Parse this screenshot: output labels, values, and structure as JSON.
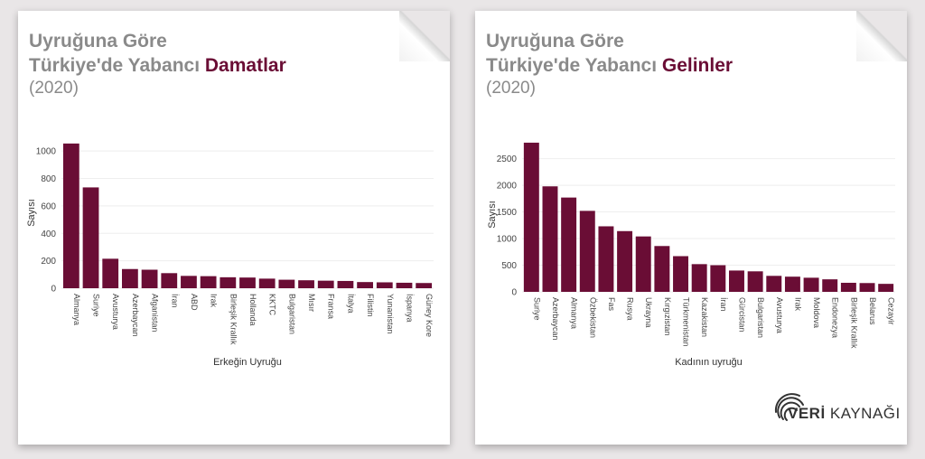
{
  "left": {
    "title_line1": "Uyruğuna Göre",
    "title_line2_prefix": "Türkiye'de Yabancı ",
    "title_highlight": "Damatlar",
    "subtitle": "(2020)"
  },
  "right": {
    "title_line1": "Uyruğuna Göre",
    "title_line2_prefix": "Türkiye'de Yabancı ",
    "title_highlight": "Gelinler",
    "subtitle": "(2020)"
  },
  "logo": {
    "part1": "VERİ",
    "part2": " KAYNAĞI"
  },
  "colors": {
    "bar": "#6a0d35",
    "title_gray": "#8a8a8a",
    "grid": "#eeeeee"
  },
  "chart_data": [
    {
      "type": "bar",
      "title": "",
      "xlabel": "Erkeğin Uyruğu",
      "ylabel": "Sayısı",
      "ylim": [
        0,
        1100
      ],
      "yticks": [
        0,
        200,
        400,
        600,
        800,
        1000
      ],
      "categories": [
        "Almanya",
        "Suriye",
        "Avusturya",
        "Azerbaycan",
        "Afganistan",
        "İran",
        "ABD",
        "Irak",
        "Birleşik Krallık",
        "Hollanda",
        "KKTC",
        "Bulgaristan",
        "Mısır",
        "Fransa",
        "İtalya",
        "Filistin",
        "Yunanistan",
        "İspanya",
        "Güney Kore"
      ],
      "values": [
        1055,
        735,
        215,
        140,
        135,
        110,
        90,
        88,
        80,
        78,
        70,
        62,
        58,
        55,
        53,
        45,
        43,
        40,
        38
      ]
    },
    {
      "type": "bar",
      "title": "",
      "xlabel": "Kadının uyruğu",
      "ylabel": "Sayısı",
      "ylim": [
        0,
        2900
      ],
      "yticks": [
        0,
        500,
        1000,
        1500,
        2000,
        2500
      ],
      "categories": [
        "Suriye",
        "Azerbaycan",
        "Almanya",
        "Özbekistan",
        "Fas",
        "Rusya",
        "Ukrayna",
        "Kırgızistan",
        "Türkmenistan",
        "Kazakistan",
        "İran",
        "Gürcistan",
        "Bulgaristan",
        "Avusturya",
        "Irak",
        "Moldova",
        "Endonezya",
        "Birleşik Krallık",
        "Belarus",
        "Cezayir"
      ],
      "values": [
        2800,
        1980,
        1770,
        1520,
        1230,
        1140,
        1040,
        860,
        670,
        520,
        500,
        400,
        385,
        300,
        285,
        265,
        235,
        170,
        165,
        150
      ]
    }
  ]
}
